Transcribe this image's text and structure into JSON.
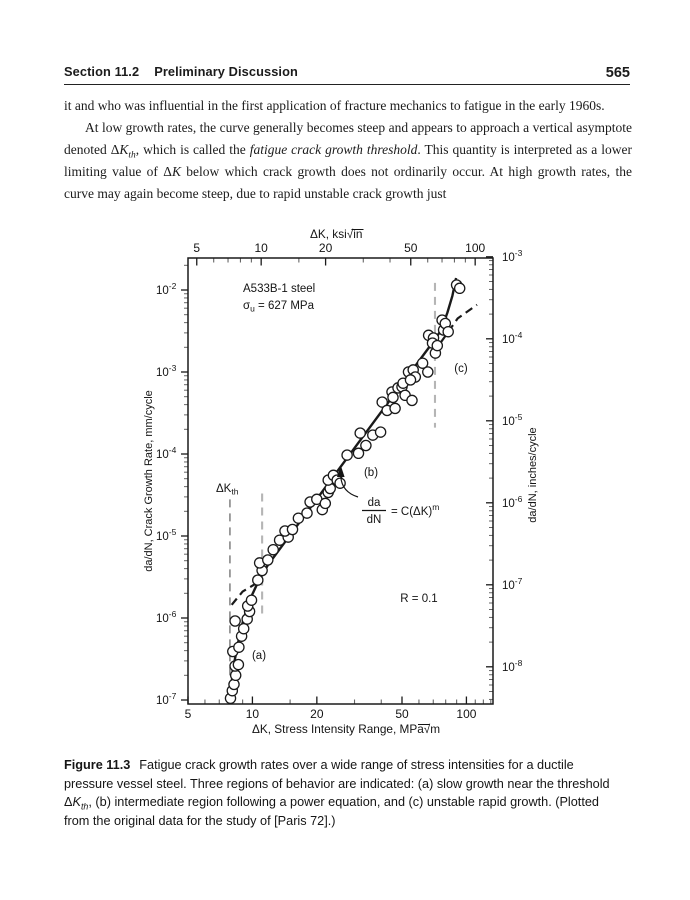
{
  "header": {
    "section": "Section 11.2",
    "title": "Preliminary Discussion",
    "page_number": "565"
  },
  "paragraphs": {
    "p1": [
      {
        "t": "it and who was influential in the first application of fracture mechanics to fatigue in the early 1960s."
      }
    ],
    "p2": [
      {
        "t": "At low growth rates, the curve generally becomes steep and appears to approach a vertical asymptote denoted "
      },
      {
        "t": "Δ"
      },
      {
        "t": "K",
        "i": true
      },
      {
        "t": "th",
        "i": true,
        "sub": true
      },
      {
        "t": ", which is called the "
      },
      {
        "t": "fatigue crack growth threshold",
        "i": true
      },
      {
        "t": ". This quantity is interpreted as a lower limiting value of "
      },
      {
        "t": "Δ"
      },
      {
        "t": "K",
        "i": true
      },
      {
        "t": " below which crack growth does not ordinarily occur. At high growth rates, the curve may again become steep, due to rapid unstable crack growth just"
      }
    ]
  },
  "figure": {
    "caption_runs": [
      {
        "t": "Figure 11.3",
        "b": true,
        "gap": true
      },
      {
        "t": "Fatigue crack growth rates over a wide range of stress intensities for a ductile pressure vessel steel. Three regions of behavior are indicated: (a) slow growth near the threshold "
      },
      {
        "t": "Δ"
      },
      {
        "t": "K",
        "i": true
      },
      {
        "t": "th",
        "i": true,
        "sub": true
      },
      {
        "t": ", (b) intermediate region following a power equation, and (c) unstable rapid growth. (Plotted from the original data for the study of [Paris 72].)"
      }
    ]
  },
  "chart_data": {
    "type": "scatter",
    "x_scale": "log",
    "y_scale": "log",
    "top_axis_prefix": "ΔK, ksi√",
    "top_axis_root": "in",
    "xlabel_prefix": "ΔK, Stress Intensity Range, MPa√",
    "xlabel_root": "m",
    "ylabel_left": "da/dN, Crack Growth Rate, mm/cycle",
    "ylabel_right": "da/dN, inches/cycle",
    "x_range_mpa_sqrt_m": [
      5,
      133
    ],
    "y_range_mm_per_cycle": [
      1e-07,
      0.0254
    ],
    "x_major_ticks": [
      5,
      10,
      20,
      50,
      100
    ],
    "x_minor_ticks": [
      6,
      7,
      8,
      9,
      15,
      30,
      40,
      60,
      70,
      80,
      90,
      110,
      120,
      130
    ],
    "top_axis_major_ticks_ksi_sqrt_in": [
      5,
      10,
      20,
      50,
      100
    ],
    "top_axis_minor_ticks_ksi_sqrt_in": [
      6,
      7,
      8,
      9,
      15,
      30,
      40,
      60,
      70,
      80,
      90
    ],
    "ksi_to_mpa_factor": 1.0988,
    "mm_per_inch_factor": 25.4,
    "y_left_exponents": [
      -2,
      -3,
      -4,
      -5,
      -6,
      -7
    ],
    "y_right_exponents": [
      -3,
      -4,
      -5,
      -6,
      -7,
      -8
    ],
    "annotations": {
      "material_line1": "A533B-1 steel",
      "material_sigma": "σ",
      "material_sigma_sub": "u",
      "material_sigma_rest": " = 627 MPa",
      "threshold_main": "ΔK",
      "threshold_sub": "th",
      "region_a": "(a)",
      "region_b": "(b)",
      "region_c": "(c)",
      "stress_ratio": "R = 0.1",
      "equation_numerator": "da",
      "equation_denominator": "dN",
      "equation_rhs": "= C(ΔK)",
      "equation_exponent": "m"
    },
    "points_dK_MPa_dadN_mm": [
      [
        7.9,
        1.05e-07
      ],
      [
        8.05,
        1.3e-07
      ],
      [
        8.2,
        1.55e-07
      ],
      [
        8.35,
        2e-07
      ],
      [
        8.3,
        2.6e-07
      ],
      [
        8.6,
        2.7e-07
      ],
      [
        8.1,
        3.9e-07
      ],
      [
        8.65,
        4.4e-07
      ],
      [
        8.3,
        9.2e-07
      ],
      [
        8.9,
        6e-07
      ],
      [
        9.1,
        7.4e-07
      ],
      [
        9.45,
        9.7e-07
      ],
      [
        9.7,
        1.2e-06
      ],
      [
        9.5,
        1.4e-06
      ],
      [
        9.9,
        1.65e-06
      ],
      [
        10.6,
        2.9e-06
      ],
      [
        11.1,
        3.8e-06
      ],
      [
        10.8,
        4.7e-06
      ],
      [
        11.8,
        5.1e-06
      ],
      [
        12.5,
        6.8e-06
      ],
      [
        13.4,
        8.9e-06
      ],
      [
        14.7,
        9.7e-06
      ],
      [
        14.2,
        1.15e-05
      ],
      [
        15.4,
        1.2e-05
      ],
      [
        16.4,
        1.65e-05
      ],
      [
        18.0,
        1.9e-05
      ],
      [
        18.6,
        2.6e-05
      ],
      [
        20.0,
        2.8e-05
      ],
      [
        21.2,
        2.1e-05
      ],
      [
        21.9,
        2.5e-05
      ],
      [
        22.6,
        3.4e-05
      ],
      [
        23.1,
        3.8e-05
      ],
      [
        22.6,
        4.8e-05
      ],
      [
        23.9,
        5.5e-05
      ],
      [
        24.9,
        4.8e-05
      ],
      [
        25.7,
        4.4e-05
      ],
      [
        27.7,
        9.7e-05
      ],
      [
        31.3,
        0.000102
      ],
      [
        33.9,
        0.000127
      ],
      [
        31.9,
        0.00018
      ],
      [
        36.5,
        0.00017
      ],
      [
        39.7,
        0.000185
      ],
      [
        40.4,
        0.00043
      ],
      [
        42.6,
        0.00034
      ],
      [
        46.4,
        0.00036
      ],
      [
        44.9,
        0.00057
      ],
      [
        45.4,
        0.00049
      ],
      [
        47.9,
        0.00064
      ],
      [
        50.0,
        0.00066
      ],
      [
        51.7,
        0.00052
      ],
      [
        55.7,
        0.00045
      ],
      [
        50.6,
        0.00073
      ],
      [
        53.6,
        0.001
      ],
      [
        56.4,
        0.00106
      ],
      [
        57.7,
        0.00087
      ],
      [
        54.8,
        0.0008
      ],
      [
        62.4,
        0.00128
      ],
      [
        66.0,
        0.001
      ],
      [
        66.6,
        0.0028
      ],
      [
        70.2,
        0.0026
      ],
      [
        69.4,
        0.00225
      ],
      [
        71.6,
        0.0017
      ],
      [
        73.1,
        0.0021
      ],
      [
        77.0,
        0.0043
      ],
      [
        78.2,
        0.00325
      ],
      [
        79.7,
        0.0039
      ],
      [
        82.2,
        0.0031
      ],
      [
        90.0,
        0.0115
      ],
      [
        93.0,
        0.0105
      ]
    ],
    "trend_line": [
      [
        7.9,
        1.07e-07
      ],
      [
        8.1,
        2.3e-07
      ],
      [
        8.55,
        4.9e-07
      ],
      [
        9.05,
        9.3e-07
      ],
      [
        9.75,
        1.7e-06
      ],
      [
        10.6,
        2.7e-06
      ],
      [
        11.8,
        4.4e-06
      ],
      [
        70.0,
        0.00235
      ],
      [
        76.0,
        0.0032
      ],
      [
        81.5,
        0.0053
      ],
      [
        86.0,
        0.0085
      ],
      [
        89.5,
        0.014
      ]
    ],
    "dashed_knee_a": [
      [
        8.0,
        1.45e-06
      ],
      [
        9.0,
        2.1e-06
      ],
      [
        10.3,
        2.6e-06
      ]
    ],
    "dashed_branch_c": [
      [
        76.0,
        0.0023
      ],
      [
        91.0,
        0.0045
      ],
      [
        112.0,
        0.0066
      ]
    ],
    "dashed_vlines": [
      {
        "k": 7.85,
        "top": 2.8e-05,
        "bottom": 1.05e-07
      },
      {
        "k": 11.1,
        "top": 3.3e-05,
        "bottom": 1.05e-06
      },
      {
        "k": 71.3,
        "top": 0.0122,
        "bottom": 0.00021
      }
    ]
  }
}
